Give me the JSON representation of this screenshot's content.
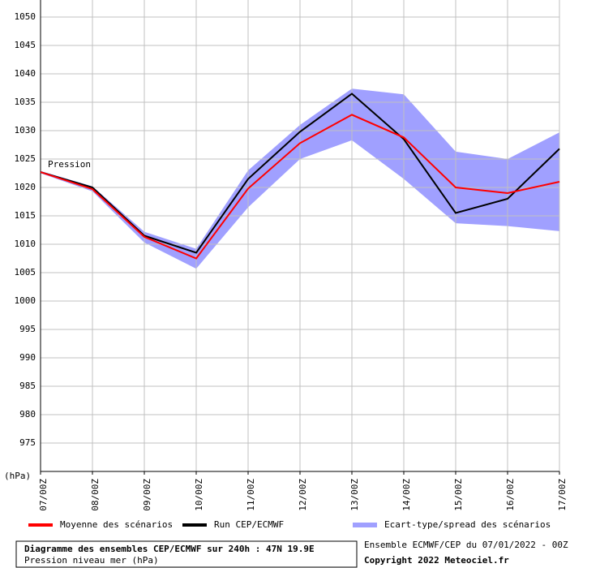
{
  "chart_data": {
    "type": "line",
    "annotation": "Pression",
    "y_label": "(hPa)",
    "categories": [
      "07/00Z",
      "08/00Z",
      "09/00Z",
      "10/00Z",
      "11/00Z",
      "12/00Z",
      "13/00Z",
      "14/00Z",
      "15/00Z",
      "16/00Z",
      "17/00Z"
    ],
    "series": [
      {
        "name": "Moyenne des scénarios",
        "color": "#ff0000",
        "values": [
          1022.7,
          1019.7,
          1011.3,
          1007.5,
          1019.8,
          1027.8,
          1032.8,
          1028.8,
          1020,
          1019,
          1021
        ]
      },
      {
        "name": "Run CEP/ECMWF",
        "color": "#000000",
        "values": [
          1022.7,
          1020,
          1011.5,
          1008.5,
          1021.5,
          1029.8,
          1036.5,
          1028.5,
          1015.5,
          1018,
          1026.8
        ]
      },
      {
        "name": "Ecart-type/spread des scénarios",
        "color": "#a0a0ff",
        "type": "band",
        "upper": [
          1022.9,
          1020.2,
          1012.2,
          1009.2,
          1023,
          1031,
          1037.4,
          1036.4,
          1026.3,
          1025,
          1029.7
        ],
        "lower": [
          1022.5,
          1019.3,
          1010.3,
          1005.7,
          1016.5,
          1025,
          1028.3,
          1021.5,
          1013.7,
          1013.2,
          1012.3
        ]
      }
    ],
    "ylim": [
      970,
      1050
    ],
    "yticks": [
      975,
      980,
      985,
      990,
      995,
      1000,
      1005,
      1010,
      1015,
      1020,
      1025,
      1030,
      1035,
      1040,
      1045,
      1050
    ],
    "grid": true,
    "footer_title": "Diagramme des ensembles CEP/ECMWF sur 240h : 47N 19.9E",
    "footer_subtitle": "Pression niveau mer (hPa)",
    "run_info": "Ensemble ECMWF/CEP du 07/01/2022 - 00Z",
    "copyright": "Copyright 2022 Meteociel.fr"
  }
}
